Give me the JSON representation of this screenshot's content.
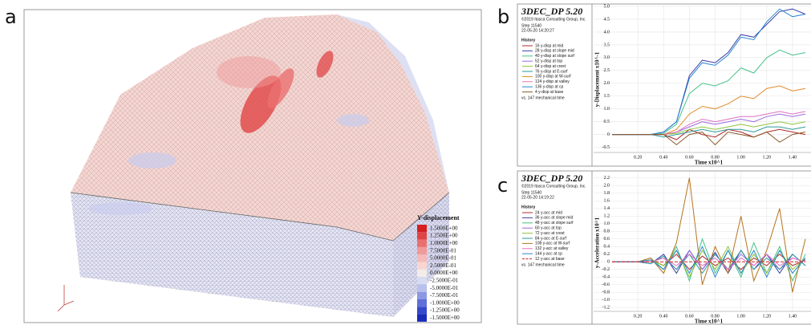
{
  "panels": {
    "a": {
      "label": "a",
      "legend_title": "Y-displacement",
      "legend": [
        {
          "label": "1.5000E+00",
          "color": "#d42020"
        },
        {
          "label": "1.2500E+00",
          "color": "#e04545"
        },
        {
          "label": "1.0000E+00",
          "color": "#ea7070"
        },
        {
          "label": "7.5000E-01",
          "color": "#f09a9a"
        },
        {
          "label": "5.0000E-01",
          "color": "#f5baba"
        },
        {
          "label": "2.5000E-01",
          "color": "#f8d6d0"
        },
        {
          "label": "0.0000E+00",
          "color": "#f3ece8"
        },
        {
          "label": "-2.5000E-01",
          "color": "#d8dcf2"
        },
        {
          "label": "-5.0000E-01",
          "color": "#b8c0ec"
        },
        {
          "label": "-7.5000E-01",
          "color": "#8d98e2"
        },
        {
          "label": "-1.0000E+00",
          "color": "#6070d8"
        },
        {
          "label": "-1.2500E+00",
          "color": "#3548cc"
        },
        {
          "label": "-1.5000E+00",
          "color": "#1a2bb8"
        }
      ]
    },
    "b": {
      "label": "b"
    },
    "c": {
      "label": "c"
    }
  },
  "chart_data": [
    {
      "type": "line",
      "title": "3DEC_DP 5.20",
      "copyright": "©2019 Itasca Consulting Group, Inc.",
      "step": "Step 11540",
      "date": "22-05-20 14:20:27",
      "history_label": "History",
      "footer": "vs. 147 mechanical time",
      "xlabel": "Time x10^1",
      "ylabel": "y-Displacement x10^-1",
      "grid": true,
      "x": [
        0,
        0.1,
        0.2,
        0.3,
        0.4,
        0.5,
        0.6,
        0.7,
        0.8,
        0.9,
        1.0,
        1.1,
        1.2,
        1.3,
        1.4,
        1.5
      ],
      "xlim": [
        0,
        1.5
      ],
      "ylim": [
        -0.7,
        5.0
      ],
      "xticks": [
        {
          "value": 0.2,
          "label": "0.20"
        },
        {
          "value": 0.4,
          "label": "0.40"
        },
        {
          "value": 0.6,
          "label": "0.60"
        },
        {
          "value": 0.8,
          "label": "0.80"
        },
        {
          "value": 1,
          "label": "1.00"
        },
        {
          "value": 1.2,
          "label": "1.20"
        },
        {
          "value": 1.4,
          "label": "1.40"
        }
      ],
      "yticks": [
        -0.5,
        0.0,
        0.5,
        {
          "value": 1,
          "label": "1.0"
        },
        1.5,
        {
          "value": 2,
          "label": "2.0"
        },
        2.5,
        {
          "value": 3,
          "label": "3.0"
        },
        3.5,
        {
          "value": 4,
          "label": "4.0"
        },
        4.5,
        {
          "value": 5,
          "label": "5.0"
        }
      ],
      "series": [
        {
          "name": "16 y-disp at mid",
          "color": "#b02a2a",
          "values": [
            0,
            0,
            0,
            0,
            0,
            -0.2,
            0.2,
            0,
            -0.1,
            0.2,
            0.1,
            -0.1,
            0.1,
            0.2,
            0.1,
            0
          ]
        },
        {
          "name": "28 y-disp at slope mid",
          "color": "#3b3fa8",
          "values": [
            0,
            0,
            0,
            0,
            0.1,
            0.5,
            2.3,
            2.9,
            2.8,
            3.2,
            3.9,
            3.8,
            4.3,
            4.8,
            4.9,
            4.7
          ]
        },
        {
          "name": "40 y-disp at slope surf",
          "color": "#47c28a",
          "values": [
            0,
            0,
            0,
            0,
            0.05,
            0.4,
            1.6,
            2.0,
            1.9,
            2.1,
            2.6,
            2.4,
            3.0,
            3.3,
            3.1,
            3.2
          ]
        },
        {
          "name": "52 y-disp at top",
          "color": "#9a6be0",
          "values": [
            0,
            0,
            0,
            0,
            0,
            0.1,
            0.3,
            0.5,
            0.4,
            0.5,
            0.6,
            0.5,
            0.7,
            0.8,
            0.7,
            0.8
          ]
        },
        {
          "name": "64 y-disp at crest",
          "color": "#8cc43a",
          "values": [
            0,
            0,
            0,
            0,
            0,
            0.05,
            0.2,
            0.3,
            0.2,
            0.3,
            0.4,
            0.3,
            0.4,
            0.5,
            0.4,
            0.5
          ]
        },
        {
          "name": "76 y-disp at E-surf",
          "color": "#2e9a9a",
          "values": [
            0,
            0,
            0,
            0,
            -0.1,
            0,
            0.1,
            0.2,
            0.1,
            0.2,
            0.2,
            0.1,
            0.3,
            0.3,
            0.2,
            0.3
          ]
        },
        {
          "name": "100 y-disp at W-surf",
          "color": "#e38a2a",
          "values": [
            0,
            0,
            0,
            0,
            0,
            0.2,
            0.8,
            1.1,
            1.0,
            1.2,
            1.5,
            1.4,
            1.8,
            1.9,
            1.7,
            1.8
          ]
        },
        {
          "name": "124 y-disp at valley",
          "color": "#e070c0",
          "values": [
            0,
            0,
            0,
            0,
            0,
            0.1,
            0.4,
            0.6,
            0.5,
            0.6,
            0.7,
            0.7,
            0.8,
            0.9,
            0.8,
            0.9
          ]
        },
        {
          "name": "136 y-disp at cp",
          "color": "#2a86d0",
          "values": [
            0,
            0,
            0,
            0,
            0.1,
            0.5,
            2.2,
            2.8,
            2.7,
            3.1,
            3.8,
            3.7,
            4.4,
            4.9,
            4.6,
            4.7
          ]
        },
        {
          "name": "4 y-disp at base",
          "color": "#8a5a2a",
          "values": [
            0,
            0,
            0,
            0,
            0,
            -0.4,
            0,
            0.1,
            -0.4,
            0.1,
            0,
            -0.1,
            0.1,
            -0.3,
            0,
            0.1
          ]
        }
      ]
    },
    {
      "type": "line",
      "title": "3DEC_DP 5.20",
      "copyright": "©2019 Itasca Consulting Group, Inc.",
      "step": "Step 11540",
      "date": "22-05-20 14:19:22",
      "history_label": "History",
      "footer": "vs. 147 mechanical time",
      "xlabel": "Time x10^1",
      "ylabel": "y-Acceleration x10^1",
      "grid": true,
      "x": [
        0,
        0.1,
        0.2,
        0.3,
        0.4,
        0.5,
        0.6,
        0.7,
        0.8,
        0.9,
        1.0,
        1.1,
        1.2,
        1.3,
        1.4,
        1.5
      ],
      "xlim": [
        0,
        1.5
      ],
      "ylim": [
        -1.3,
        2.3
      ],
      "xticks": [
        {
          "value": 0.2,
          "label": "0.20"
        },
        {
          "value": 0.4,
          "label": "0.40"
        },
        {
          "value": 0.6,
          "label": "0.60"
        },
        {
          "value": 0.8,
          "label": "0.80"
        },
        {
          "value": 1,
          "label": "1.00"
        },
        {
          "value": 1.2,
          "label": "1.20"
        },
        {
          "value": 1.4,
          "label": "1.40"
        }
      ],
      "yticks": [
        -1.2,
        {
          "value": -1,
          "label": "-1.0"
        },
        -0.8,
        -0.6,
        -0.4,
        -0.2,
        0.0,
        0.2,
        0.4,
        0.6,
        0.8,
        {
          "value": 1,
          "label": "1.0"
        },
        1.2,
        1.4,
        1.6,
        1.8,
        {
          "value": 2,
          "label": "2.0"
        },
        2.2
      ],
      "series": [
        {
          "name": "24 y-acc at mid",
          "color": "#b02a2a",
          "values": [
            0,
            0,
            0,
            0.05,
            -0.1,
            0.2,
            -0.2,
            0.15,
            -0.1,
            0.1,
            -0.2,
            0.1,
            -0.1,
            0.2,
            -0.1,
            0.05
          ]
        },
        {
          "name": "36 y-acc at slope mid",
          "color": "#3b3fa8",
          "values": [
            0,
            0,
            0,
            -0.05,
            0.2,
            -0.3,
            0.3,
            -0.2,
            0.25,
            -0.3,
            0.3,
            -0.2,
            0.2,
            -0.3,
            0.2,
            -0.1
          ]
        },
        {
          "name": "48 y-acc at slope surf",
          "color": "#47c28a",
          "values": [
            0,
            0,
            0,
            0.1,
            -0.2,
            0.4,
            -0.5,
            0.6,
            -0.3,
            0.3,
            -0.4,
            0.5,
            -0.3,
            0.4,
            -0.5,
            0.2
          ]
        },
        {
          "name": "60 y-acc at top",
          "color": "#9a6be0",
          "values": [
            0,
            0,
            0,
            0,
            0.1,
            -0.2,
            0.3,
            -0.2,
            0.2,
            -0.2,
            0.2,
            -0.1,
            0.2,
            -0.2,
            0.1,
            0
          ]
        },
        {
          "name": "72 y-acc at crest",
          "color": "#8cc43a",
          "values": [
            0,
            0,
            0,
            0.05,
            -0.1,
            0.3,
            -0.4,
            0.3,
            -0.2,
            0.4,
            -0.3,
            0.2,
            -0.3,
            0.3,
            -0.2,
            0.1
          ]
        },
        {
          "name": "84 y-acc at E-surf",
          "color": "#2e9a9a",
          "values": [
            0,
            0,
            0,
            -0.05,
            0.15,
            -0.2,
            0.2,
            -0.3,
            0.2,
            -0.2,
            0.3,
            -0.2,
            0.1,
            -0.2,
            0.2,
            -0.1
          ]
        },
        {
          "name": "108 y-acc at W-surf",
          "color": "#b5741c",
          "values": [
            0,
            0,
            0,
            0.1,
            -0.3,
            0.5,
            2.2,
            -0.6,
            0.4,
            -0.3,
            1.2,
            -0.5,
            0.3,
            1.4,
            -0.8,
            0.6
          ]
        },
        {
          "name": "132 y-acc at valley",
          "color": "#e070c0",
          "values": [
            0,
            0,
            0,
            0,
            0.1,
            -0.1,
            0.2,
            -0.1,
            0.1,
            -0.2,
            0.1,
            -0.1,
            0.2,
            -0.1,
            0.1,
            0
          ]
        },
        {
          "name": "144 y-acc at cp",
          "color": "#2a86d0",
          "values": [
            0,
            0,
            0,
            0.05,
            -0.2,
            0.3,
            -0.3,
            0.4,
            -0.4,
            0.3,
            -0.3,
            0.3,
            -0.4,
            0.3,
            -0.3,
            0.1
          ]
        },
        {
          "name": "12 y-acc at base",
          "color": "#d42020",
          "dashed": true,
          "values": [
            0,
            0,
            0,
            0,
            0,
            0,
            0,
            0,
            0,
            0,
            0,
            0,
            0,
            0,
            0,
            0
          ]
        }
      ]
    }
  ]
}
